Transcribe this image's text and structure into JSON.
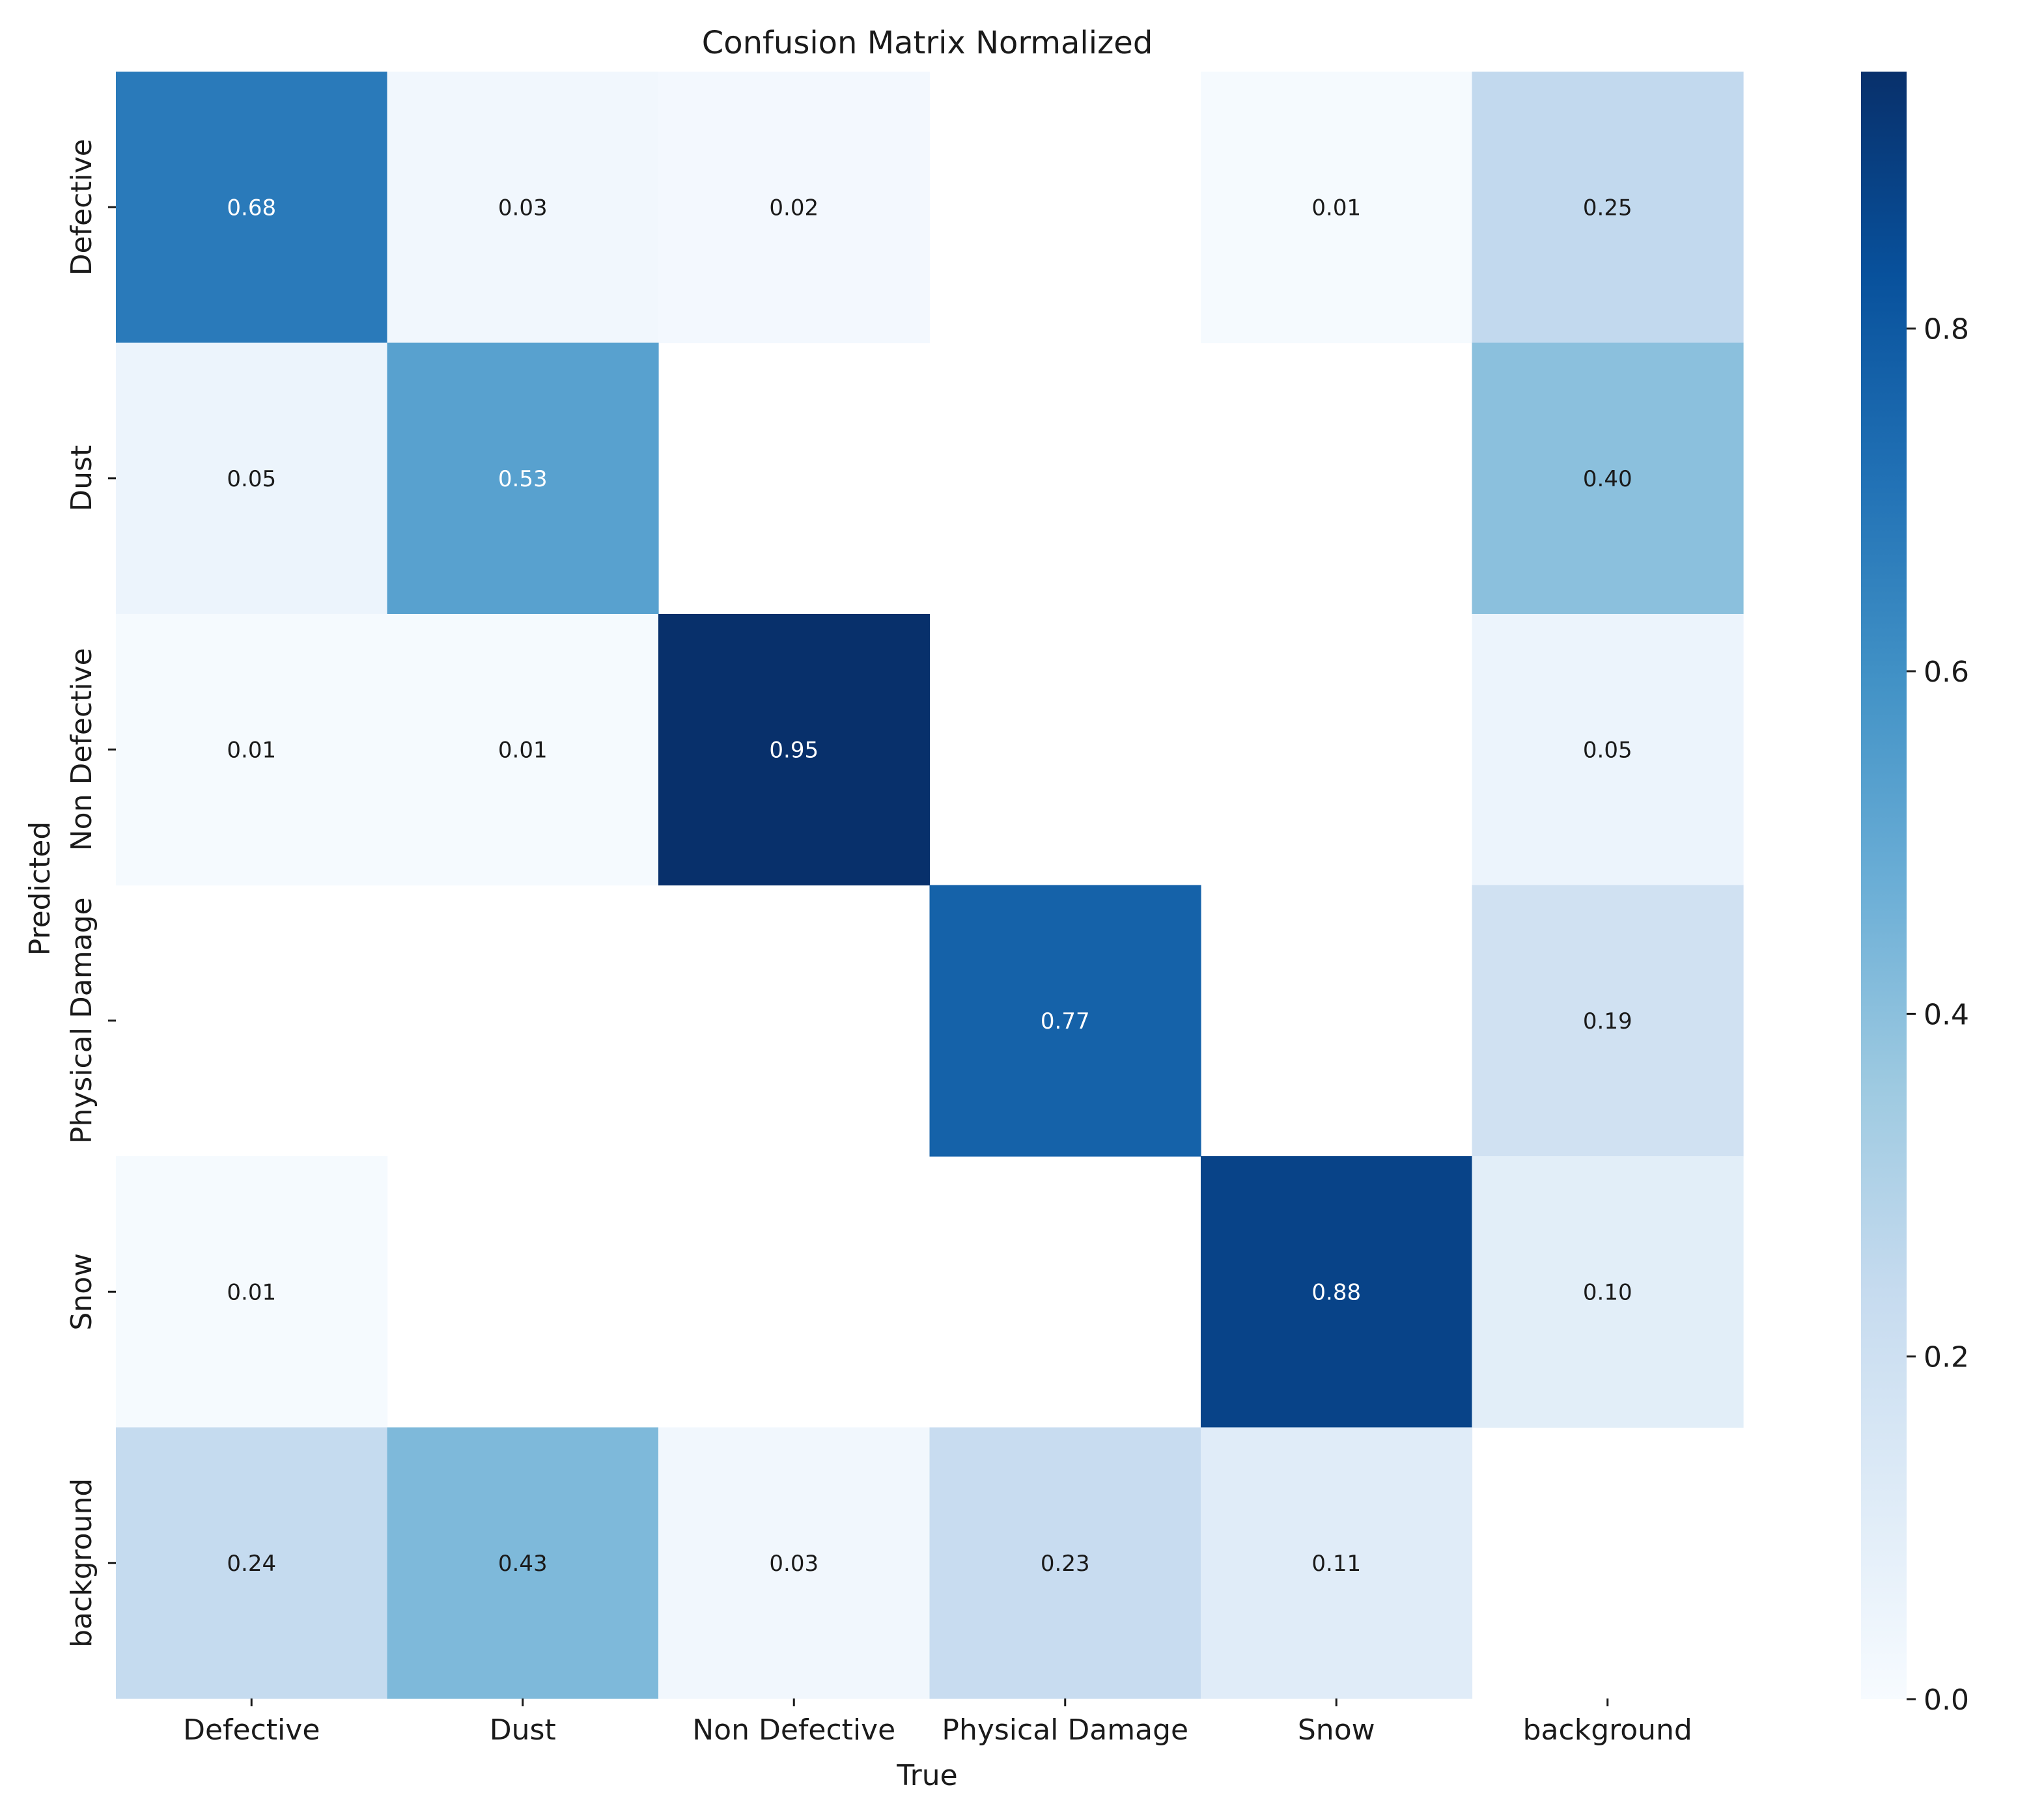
{
  "chart_data": {
    "type": "heatmap",
    "title": "Confusion Matrix Normalized",
    "xlabel": "True",
    "ylabel": "Predicted",
    "x_categories": [
      "Defective",
      "Dust",
      "Non Defective",
      "Physical Damage",
      "Snow",
      "background"
    ],
    "y_categories": [
      "Defective",
      "Dust",
      "Non Defective",
      "Physical Damage",
      "Snow",
      "background"
    ],
    "matrix": [
      [
        0.68,
        0.03,
        0.02,
        null,
        0.01,
        0.25
      ],
      [
        0.05,
        0.53,
        null,
        null,
        null,
        0.4
      ],
      [
        0.01,
        0.01,
        0.95,
        null,
        null,
        0.05
      ],
      [
        null,
        null,
        null,
        0.77,
        null,
        0.19
      ],
      [
        0.01,
        null,
        null,
        null,
        0.88,
        0.1
      ],
      [
        0.24,
        0.43,
        0.03,
        0.23,
        0.11,
        null
      ]
    ],
    "colormap": "Blues",
    "colorbar_range": [
      0.0,
      0.95
    ],
    "colorbar_ticks": [
      0.0,
      0.2,
      0.4,
      0.6,
      0.8
    ],
    "colorbar_tick_labels": [
      "0.0",
      "0.2",
      "0.4",
      "0.6",
      "0.8"
    ]
  }
}
